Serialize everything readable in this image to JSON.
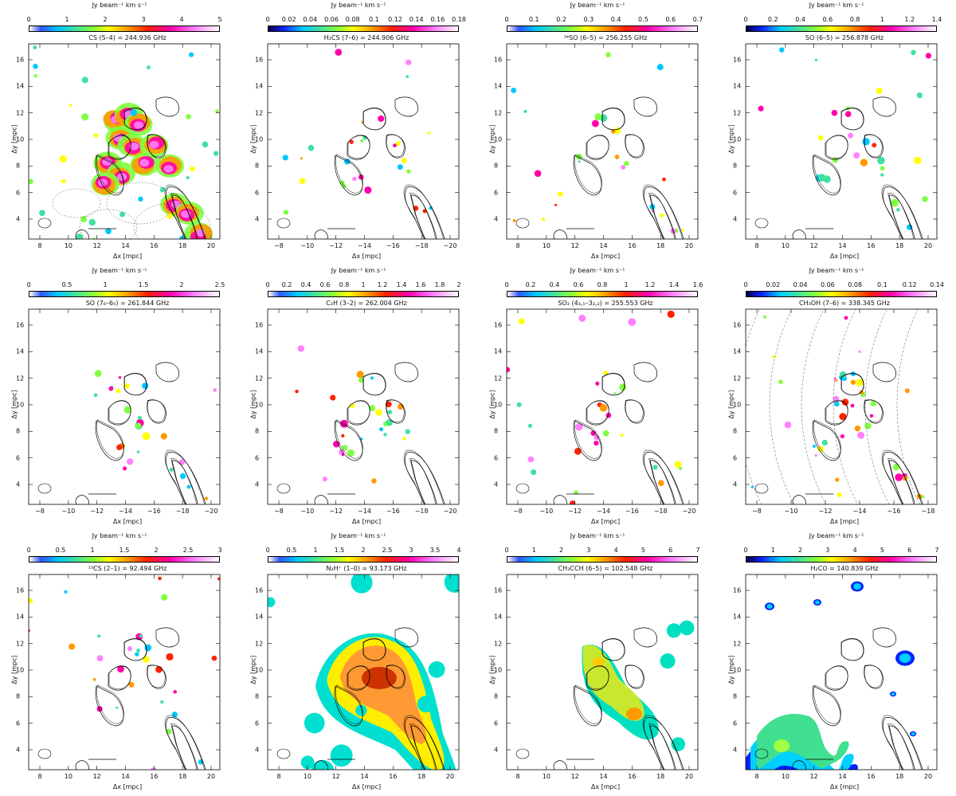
{
  "figure": {
    "panels": [
      {
        "id": "p1",
        "unit": "Jy beam⁻¹ km s⁻¹",
        "title": "CS (5–4) = 244.936 GHz",
        "scale_ticks": [
          "0",
          "1",
          "2",
          "3",
          "4",
          "5"
        ],
        "x_ticks": [
          "8",
          "10",
          "12",
          "14",
          "16",
          "18",
          "20"
        ],
        "y_ticks": [
          "16",
          "14",
          "12",
          "10",
          "8",
          "6",
          "4"
        ],
        "x_label": "Δx [mpc]",
        "y_label": "Δy [mpc]",
        "gradient": "rainbow",
        "emission": "extended"
      },
      {
        "id": "p2",
        "unit": "Jy beam⁻¹ km s⁻¹",
        "title": "H₂CS (7–6) = 244.906 GHz",
        "scale_ticks": [
          "0",
          "0.02",
          "0.04",
          "0.06",
          "0.08",
          "0.1",
          "0.12",
          "0.14",
          "0.16",
          "0.18"
        ],
        "x_ticks": [
          "−8",
          "−10",
          "−12",
          "−14",
          "−16",
          "−18",
          "−20"
        ],
        "y_ticks": [
          "16",
          "14",
          "12",
          "10",
          "8",
          "6",
          "4"
        ],
        "x_label": "Δx [mpc]",
        "y_label": "Δy [mpc]",
        "gradient": "rainbow-dark",
        "emission": "sparse"
      },
      {
        "id": "p3",
        "unit": "Jy beam⁻¹ km s⁻¹",
        "title": "³⁴SO (6–5) = 256.255 GHz",
        "scale_ticks": [
          "0",
          "0.1",
          "0.2",
          "0.3",
          "0.4",
          "0.5",
          "0.6",
          "0.7"
        ],
        "x_ticks": [
          "8",
          "10",
          "12",
          "14",
          "16",
          "18",
          "20"
        ],
        "y_ticks": [
          "16",
          "14",
          "12",
          "10",
          "8",
          "6",
          "4"
        ],
        "x_label": "Δx [mpc]",
        "y_label": "Δy [mpc]",
        "gradient": "rainbow",
        "emission": "sparse"
      },
      {
        "id": "p4",
        "unit": "Jy beam⁻¹ km s⁻¹",
        "title": "SO (6–5) = 256.878 GHz",
        "scale_ticks": [
          "0",
          "0.2",
          "0.4",
          "0.6",
          "0.8",
          "1",
          "1.2",
          "1.4"
        ],
        "x_ticks": [
          "8",
          "10",
          "12",
          "14",
          "16",
          "18",
          "20"
        ],
        "y_ticks": [
          "16",
          "14",
          "12",
          "10",
          "8",
          "6",
          "4"
        ],
        "x_label": "Δx [mpc]",
        "y_label": "Δy [mpc]",
        "gradient": "rainbow-dark",
        "emission": "sparse"
      },
      {
        "id": "p5",
        "unit": "Jy beam⁻¹ km s⁻¹",
        "title": "SO (7₆–6₅) = 261.844 GHz",
        "scale_ticks": [
          "0",
          "0.5",
          "1",
          "1.5",
          "2",
          "2.5"
        ],
        "x_ticks": [
          "−8",
          "−10",
          "−12",
          "−14",
          "−16",
          "−18",
          "−20"
        ],
        "y_ticks": [
          "16",
          "14",
          "12",
          "10",
          "8",
          "6",
          "4"
        ],
        "x_label": "Δx [mpc]",
        "y_label": "Δy [mpc]",
        "gradient": "rainbow",
        "emission": "sparse"
      },
      {
        "id": "p6",
        "unit": "Jy beam⁻¹ km s⁻¹",
        "title": "C₂H (3–2) = 262.004 GHz",
        "scale_ticks": [
          "0",
          "0.2",
          "0.4",
          "0.6",
          "0.8",
          "1",
          "1.2",
          "1.4",
          "1.6",
          "1.8",
          "2"
        ],
        "x_ticks": [
          "−8",
          "−10",
          "−12",
          "−14",
          "−16",
          "−18",
          "−20"
        ],
        "y_ticks": [
          "16",
          "14",
          "12",
          "10",
          "8",
          "6",
          "4"
        ],
        "x_label": "Δx [mpc]",
        "y_label": "Δy [mpc]",
        "gradient": "rainbow",
        "emission": "sparse"
      },
      {
        "id": "p7",
        "unit": "Jy beam⁻¹ km s⁻¹",
        "title": "SO₂ (4₃,₁–3₂,₂) = 255.553 GHz",
        "scale_ticks": [
          "0",
          "0.2",
          "0.4",
          "0.6",
          "0.8",
          "1",
          "1.2",
          "1.4",
          "1.6"
        ],
        "x_ticks": [
          "−8",
          "−10",
          "−12",
          "−14",
          "−16",
          "−18",
          "−20"
        ],
        "y_ticks": [
          "16",
          "14",
          "12",
          "10",
          "8",
          "6",
          "4"
        ],
        "x_label": "Δx [mpc]",
        "y_label": "Δy [mpc]",
        "gradient": "rainbow",
        "emission": "sparse"
      },
      {
        "id": "p8",
        "unit": "Jy beam⁻¹ km s⁻¹",
        "title": "CH₃OH (7–6) = 338.345 GHz",
        "scale_ticks": [
          "0",
          "0.02",
          "0.04",
          "0.06",
          "0.08",
          "0.1",
          "0.12",
          "0.14"
        ],
        "x_ticks": [
          "−8",
          "−10",
          "−12",
          "−14",
          "−16",
          "−18"
        ],
        "y_ticks": [
          "16",
          "14",
          "12",
          "10",
          "8",
          "6",
          "4"
        ],
        "x_label": "Δx [mpc]",
        "y_label": "Δy [mpc]",
        "gradient": "rainbow-dark",
        "emission": "sparse-rings"
      },
      {
        "id": "p9",
        "unit": "Jy beam⁻¹ km s⁻¹",
        "title": "¹³CS (2–1) = 92.494 GHz",
        "scale_ticks": [
          "0",
          "0.5",
          "1",
          "1.5",
          "2",
          "2.5",
          "3"
        ],
        "x_ticks": [
          "8",
          "10",
          "12",
          "14",
          "16",
          "18",
          "20"
        ],
        "y_ticks": [
          "16",
          "14",
          "12",
          "10",
          "8",
          "6",
          "4"
        ],
        "x_label": "Δx [mpc]",
        "y_label": "Δy [mpc]",
        "gradient": "rainbow",
        "emission": "sparse"
      },
      {
        "id": "p10",
        "unit": "Jy beam⁻¹ km s⁻¹",
        "title": "N₂H⁺ (1–0) = 93.173 GHz",
        "scale_ticks": [
          "0",
          "0.5",
          "1",
          "1.5",
          "2",
          "2.5",
          "3",
          "3.5",
          "4"
        ],
        "x_ticks": [
          "8",
          "10",
          "12",
          "14",
          "16",
          "18",
          "20"
        ],
        "y_ticks": [
          "16",
          "14",
          "12",
          "10",
          "8",
          "6",
          "4"
        ],
        "x_label": "Δx [mpc]",
        "y_label": "Δy [mpc]",
        "gradient": "rainbow",
        "emission": "broad"
      },
      {
        "id": "p11",
        "unit": "Jy beam⁻¹ km s⁻¹",
        "title": "CH₃CCH (6–5) = 102.548 GHz",
        "scale_ticks": [
          "0",
          "1",
          "2",
          "3",
          "4",
          "5",
          "6",
          "7"
        ],
        "x_ticks": [
          "8",
          "10",
          "12",
          "14",
          "16",
          "18",
          "20"
        ],
        "y_ticks": [
          "16",
          "14",
          "12",
          "10",
          "8",
          "6",
          "4"
        ],
        "x_label": "Δx [mpc]",
        "y_label": "Δy [mpc]",
        "gradient": "rainbow",
        "emission": "medium"
      },
      {
        "id": "p12",
        "unit": "Jy beam⁻¹ km s⁻¹",
        "title": "H₂CO = 140.839 GHz",
        "scale_ticks": [
          "0",
          "1",
          "2",
          "3",
          "4",
          "5",
          "6",
          "7"
        ],
        "x_ticks": [
          "8",
          "10",
          "12",
          "14",
          "16",
          "18",
          "20"
        ],
        "y_ticks": [
          "16",
          "14",
          "12",
          "10",
          "8",
          "6",
          "4"
        ],
        "x_label": "Δx [mpc]",
        "y_label": "Δy [mpc]",
        "gradient": "rainbow-dark",
        "emission": "lower-left"
      }
    ]
  }
}
